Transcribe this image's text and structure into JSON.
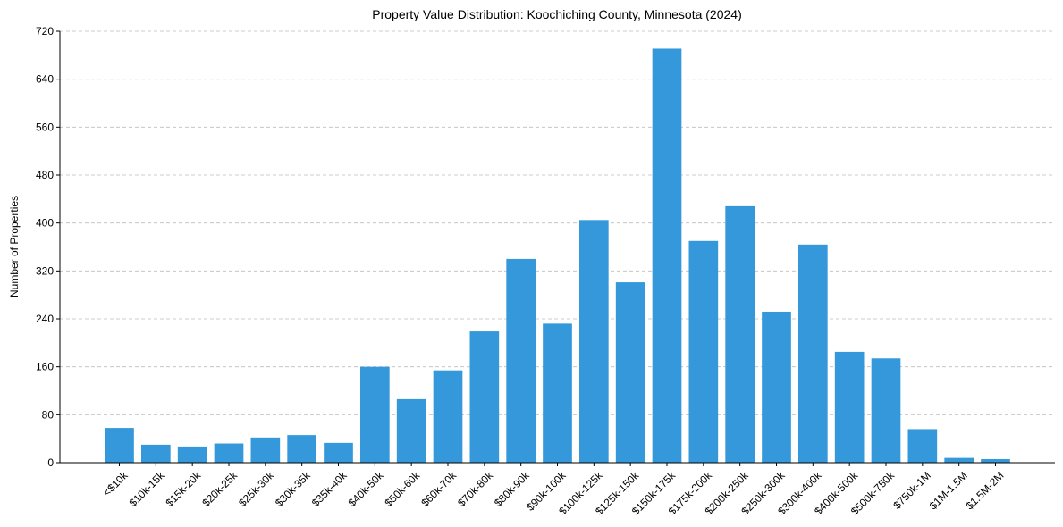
{
  "chart_data": {
    "type": "bar",
    "title": "Property Value Distribution: Koochiching County, Minnesota (2024)",
    "xlabel": "",
    "ylabel": "Number of Properties",
    "ylim": [
      0,
      720
    ],
    "yticks": [
      0,
      80,
      160,
      240,
      320,
      400,
      480,
      560,
      640,
      720
    ],
    "grid": true,
    "bar_color": "#3498db",
    "categories": [
      "<$10k",
      "$10k-15k",
      "$15k-20k",
      "$20k-25k",
      "$25k-30k",
      "$30k-35k",
      "$35k-40k",
      "$40k-50k",
      "$50k-60k",
      "$60k-70k",
      "$70k-80k",
      "$80k-90k",
      "$90k-100k",
      "$100k-125k",
      "$125k-150k",
      "$150k-175k",
      "$175k-200k",
      "$200k-250k",
      "$250k-300k",
      "$300k-400k",
      "$400k-500k",
      "$500k-750k",
      "$750k-1M",
      "$1M-1.5M",
      "$1.5M-2M"
    ],
    "values": [
      58,
      30,
      27,
      32,
      42,
      46,
      33,
      160,
      106,
      154,
      219,
      340,
      232,
      405,
      301,
      691,
      370,
      428,
      252,
      364,
      185,
      174,
      56,
      8,
      6
    ]
  }
}
